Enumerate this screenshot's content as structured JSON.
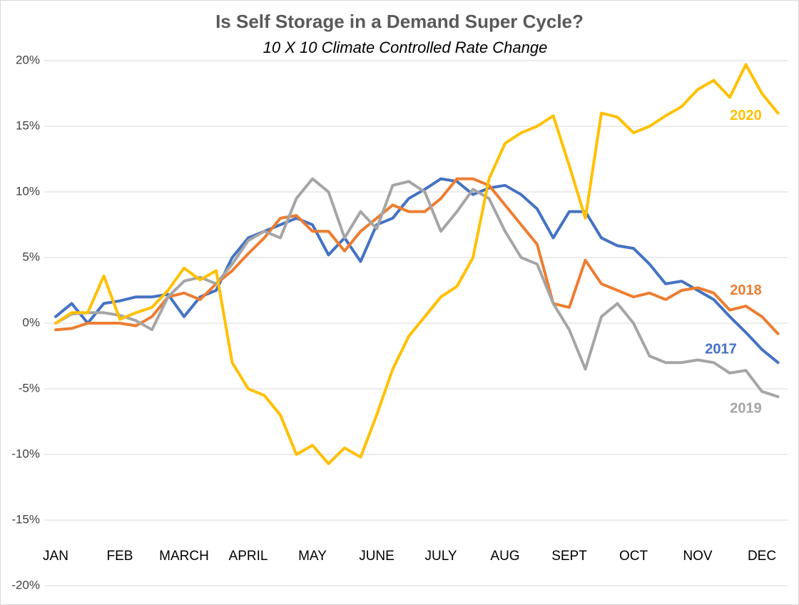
{
  "chart_data": {
    "type": "line",
    "title": "Is Self Storage in a Demand Super Cycle?",
    "subtitle": "10 X 10 Climate Controlled Rate Change",
    "categories": [
      "JAN",
      null,
      null,
      null,
      "FEB",
      null,
      null,
      null,
      "MARCH",
      null,
      null,
      null,
      "APRIL",
      null,
      null,
      null,
      "MAY",
      null,
      null,
      null,
      "JUNE",
      null,
      null,
      null,
      "JULY",
      null,
      null,
      null,
      "AUG",
      null,
      null,
      null,
      "SEPT",
      null,
      null,
      null,
      "OCT",
      null,
      null,
      null,
      "NOV",
      null,
      null,
      null,
      "DEC",
      null
    ],
    "series": [
      {
        "name": "2017",
        "color": "#4472c4",
        "values": [
          0.5,
          1.5,
          0,
          1.5,
          1.7,
          2,
          2,
          2.2,
          0.5,
          2,
          2.5,
          5,
          6.5,
          7,
          7.5,
          8,
          7.5,
          5.2,
          6.5,
          4.7,
          7.5,
          8,
          9.5,
          10.2,
          11,
          10.8,
          9.8,
          10.3,
          10.5,
          9.8,
          8.7,
          6.5,
          8.5,
          8.5,
          6.5,
          5.9,
          5.7,
          4.5,
          3,
          3.2,
          2.5,
          1.8,
          0.5,
          -0.7,
          -2,
          -3
        ]
      },
      {
        "name": "2018",
        "color": "#ed7d31",
        "values": [
          -0.5,
          -0.4,
          0,
          0,
          0,
          -0.2,
          0.5,
          2,
          2.3,
          1.8,
          3,
          4,
          5.3,
          6.5,
          8,
          8.2,
          7,
          7,
          5.5,
          7,
          8,
          9,
          8.5,
          8.5,
          9.5,
          11,
          11,
          10.5,
          9,
          7.5,
          6,
          1.5,
          1.2,
          4.8,
          3,
          2.5,
          2,
          2.3,
          1.8,
          2.5,
          2.7,
          2.3,
          1,
          1.3,
          0.5,
          -0.8
        ]
      },
      {
        "name": "2019",
        "color": "#a5a5a5",
        "values": [
          0,
          0.7,
          0.8,
          0.8,
          0.6,
          0.2,
          -0.5,
          2,
          3.2,
          3.5,
          3,
          4.5,
          6.3,
          7,
          6.5,
          9.5,
          11,
          10,
          6.5,
          8.5,
          7.2,
          10.5,
          10.8,
          10,
          7,
          8.5,
          10.2,
          9.5,
          7,
          5,
          4.5,
          1.5,
          -0.5,
          -3.5,
          0.5,
          1.5,
          0,
          -2.5,
          -3,
          -3,
          -2.8,
          -3,
          -3.8,
          -3.6,
          -5.2,
          -5.6
        ]
      },
      {
        "name": "2020",
        "color": "#ffc000",
        "values": [
          0,
          0.8,
          0.8,
          3.6,
          0.3,
          0.8,
          1.2,
          2.5,
          4.2,
          3.3,
          4,
          -3,
          -5,
          -5.5,
          -7,
          -10,
          -9.3,
          -10.7,
          -9.5,
          -10.2,
          -7,
          -3.5,
          -1,
          0.5,
          2,
          2.8,
          5,
          11,
          13.7,
          14.5,
          15,
          15.8,
          12,
          8,
          16,
          15.7,
          14.5,
          15,
          15.8,
          16.5,
          17.8,
          18.5,
          17.2,
          19.7,
          17.5,
          16
        ]
      }
    ],
    "ylim": [
      -20,
      20
    ],
    "yticks": [
      {
        "value": -20,
        "label": "-20%"
      },
      {
        "value": -15,
        "label": "-15%"
      },
      {
        "value": -10,
        "label": "-10%"
      },
      {
        "value": -5,
        "label": "-5%"
      },
      {
        "value": 0,
        "label": "0%"
      },
      {
        "value": 5,
        "label": "5%"
      },
      {
        "value": 10,
        "label": "10%"
      },
      {
        "value": 15,
        "label": "15%"
      },
      {
        "value": 20,
        "label": "20%"
      }
    ],
    "grid": true
  }
}
